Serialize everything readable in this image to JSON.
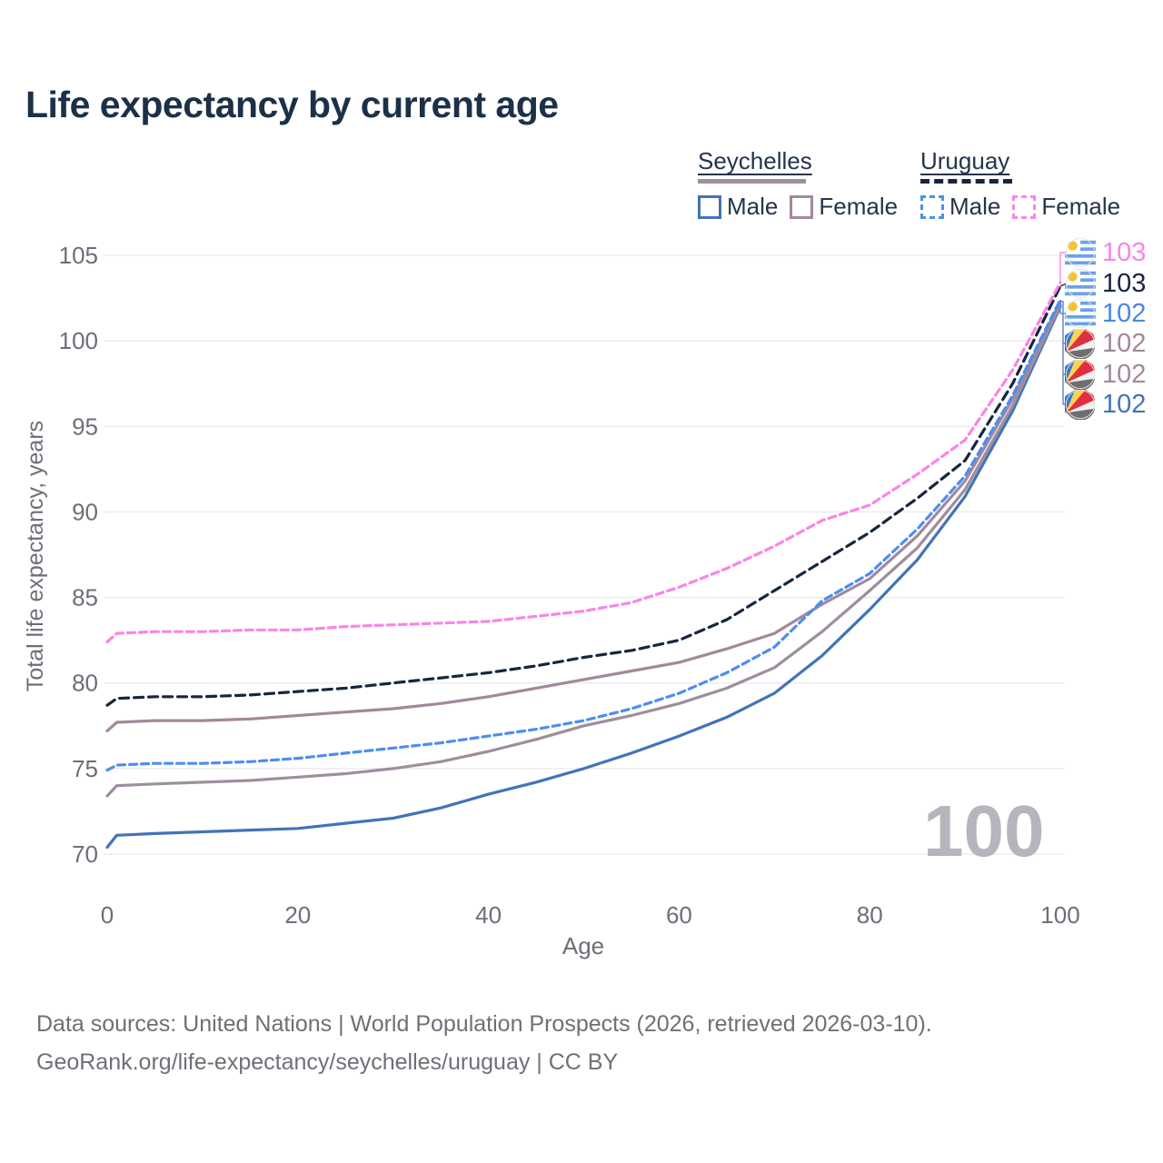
{
  "title": "Life expectancy by current age",
  "watermark": "100",
  "colors": {
    "title": "#1c3048",
    "legend_text": "#25344c",
    "grid": "#ededf1",
    "axis_text": "#6e6e78",
    "watermark": "#b5b5bc",
    "seychelles_male": "#4273b8",
    "seychelles_total": "#9d8e9e",
    "seychelles_female": "#a3889b",
    "uruguay_male": "#4d8ef0",
    "uruguay_total": "#16263e",
    "uruguay_female": "#f985e5",
    "label_bracket": "#5e82c2"
  },
  "legend": {
    "groups": [
      {
        "country": "Seychelles",
        "line_style": "solid",
        "swatch_color": "#9d8e9e",
        "items": [
          {
            "label": "Male",
            "color": "#4273b8",
            "box": "solid"
          },
          {
            "label": "Female",
            "color": "#a3889b",
            "box": "solid"
          }
        ]
      },
      {
        "country": "Uruguay",
        "line_style": "dashed",
        "swatch_color": "#16263e",
        "items": [
          {
            "label": "Male",
            "color": "#4d8ef0",
            "box": "dashed"
          },
          {
            "label": "Female",
            "color": "#f985e5",
            "box": "dashed"
          }
        ]
      }
    ]
  },
  "chart_data": {
    "type": "line",
    "title": "Life expectancy by current age",
    "xlabel": "Age",
    "ylabel": "Total life expectancy, years",
    "xlim": [
      0,
      100
    ],
    "ylim": [
      70,
      105
    ],
    "x_ticks": [
      0,
      20,
      40,
      60,
      80,
      100
    ],
    "y_ticks": [
      70,
      75,
      80,
      85,
      90,
      95,
      100,
      105
    ],
    "grid": "horizontal-only",
    "legend_position": "top-right",
    "x": [
      0,
      1,
      5,
      10,
      15,
      20,
      25,
      30,
      35,
      40,
      45,
      50,
      55,
      60,
      65,
      70,
      75,
      80,
      85,
      90,
      95,
      100
    ],
    "series": [
      {
        "name": "Seychelles Male",
        "country": "Seychelles",
        "color": "#4273b8",
        "dash": "solid",
        "values": [
          70.4,
          71.1,
          71.2,
          71.3,
          71.4,
          71.5,
          71.8,
          72.1,
          72.7,
          73.5,
          74.2,
          75.0,
          75.9,
          76.9,
          78.0,
          79.4,
          81.6,
          84.3,
          87.2,
          90.9,
          95.9,
          102.0
        ],
        "end_label": "102"
      },
      {
        "name": "Seychelles Total",
        "country": "Seychelles",
        "color": "#9d8e9e",
        "dash": "solid",
        "values": [
          73.4,
          74.0,
          74.1,
          74.2,
          74.3,
          74.5,
          74.7,
          75.0,
          75.4,
          76.0,
          76.7,
          77.5,
          78.1,
          78.8,
          79.7,
          80.9,
          83.0,
          85.4,
          87.9,
          91.3,
          96.2,
          102.1
        ],
        "end_label": "102"
      },
      {
        "name": "Seychelles Female",
        "country": "Seychelles",
        "color": "#a3889b",
        "dash": "solid",
        "values": [
          77.2,
          77.7,
          77.8,
          77.8,
          77.9,
          78.1,
          78.3,
          78.5,
          78.8,
          79.2,
          79.7,
          80.2,
          80.7,
          81.2,
          82.0,
          82.9,
          84.6,
          86.1,
          88.6,
          91.8,
          96.6,
          102.3
        ],
        "end_label": "102"
      },
      {
        "name": "Uruguay Male",
        "country": "Uruguay",
        "color": "#4d8ef0",
        "dash": "dashed",
        "values": [
          74.9,
          75.2,
          75.3,
          75.3,
          75.4,
          75.6,
          75.9,
          76.2,
          76.5,
          76.9,
          77.3,
          77.8,
          78.5,
          79.4,
          80.6,
          82.1,
          84.8,
          86.4,
          89.0,
          92.1,
          96.8,
          102.4
        ],
        "end_label": "102"
      },
      {
        "name": "Uruguay Total",
        "country": "Uruguay",
        "color": "#16263e",
        "dash": "dashed",
        "values": [
          78.7,
          79.1,
          79.2,
          79.2,
          79.3,
          79.5,
          79.7,
          80.0,
          80.3,
          80.6,
          81.0,
          81.5,
          81.9,
          82.5,
          83.7,
          85.4,
          87.1,
          88.8,
          90.8,
          93.0,
          97.5,
          103.2
        ],
        "end_label": "103"
      },
      {
        "name": "Uruguay Female",
        "country": "Uruguay",
        "color": "#f985e5",
        "dash": "dashed",
        "values": [
          82.4,
          82.9,
          83.0,
          83.0,
          83.1,
          83.1,
          83.3,
          83.4,
          83.5,
          83.6,
          83.9,
          84.2,
          84.7,
          85.6,
          86.7,
          88.0,
          89.5,
          90.4,
          92.2,
          94.2,
          98.3,
          103.4
        ],
        "end_label": "103"
      }
    ]
  },
  "end_labels": [
    {
      "value": "103",
      "flag": "uruguay",
      "color": "#f985e5"
    },
    {
      "value": "103",
      "flag": "uruguay",
      "color": "#17263c"
    },
    {
      "value": "102",
      "flag": "uruguay",
      "color": "#4a86e8"
    },
    {
      "value": "102",
      "flag": "seychelles",
      "color": "#a3889b"
    },
    {
      "value": "102",
      "flag": "seychelles",
      "color": "#a3889b"
    },
    {
      "value": "102",
      "flag": "seychelles",
      "color": "#4273b8"
    }
  ],
  "footer": {
    "line1": "Data sources: United Nations | World Population Prospects (2026, retrieved 2026-03-10).",
    "line2": "GeoRank.org/life-expectancy/seychelles/uruguay | CC BY"
  }
}
